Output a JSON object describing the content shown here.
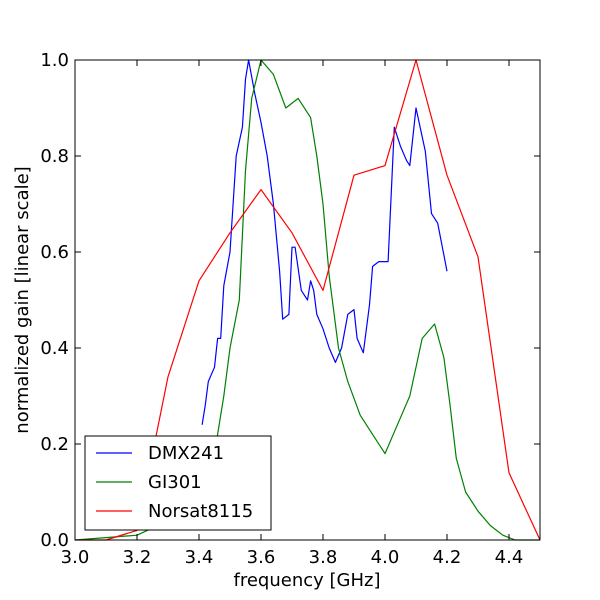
{
  "chart_data": {
    "type": "line",
    "xlabel": "frequency [GHz]",
    "ylabel": "normalized gain [linear scale]",
    "xlim": [
      3.0,
      4.5
    ],
    "ylim": [
      0.0,
      1.0
    ],
    "x_ticks": [
      3.0,
      3.2,
      3.4,
      3.6,
      3.8,
      4.0,
      4.2,
      4.4
    ],
    "x_tick_labels": [
      "3.0",
      "3.2",
      "3.4",
      "3.6",
      "3.8",
      "4.0",
      "4.2",
      "4.4"
    ],
    "y_ticks": [
      0.0,
      0.2,
      0.4,
      0.6,
      0.8,
      1.0
    ],
    "y_tick_labels": [
      "0.0",
      "0.2",
      "0.4",
      "0.6",
      "0.8",
      "1.0"
    ],
    "grid": false,
    "legend_position": "lower-left",
    "series": [
      {
        "name": "DMX241",
        "color": "#0000ff",
        "points": [
          [
            3.41,
            0.24
          ],
          [
            3.42,
            0.28
          ],
          [
            3.43,
            0.33
          ],
          [
            3.45,
            0.36
          ],
          [
            3.46,
            0.42
          ],
          [
            3.47,
            0.42
          ],
          [
            3.48,
            0.53
          ],
          [
            3.5,
            0.6
          ],
          [
            3.51,
            0.7
          ],
          [
            3.52,
            0.8
          ],
          [
            3.54,
            0.86
          ],
          [
            3.55,
            0.96
          ],
          [
            3.56,
            1.0
          ],
          [
            3.58,
            0.93
          ],
          [
            3.6,
            0.87
          ],
          [
            3.62,
            0.8
          ],
          [
            3.64,
            0.7
          ],
          [
            3.66,
            0.56
          ],
          [
            3.67,
            0.46
          ],
          [
            3.69,
            0.47
          ],
          [
            3.7,
            0.61
          ],
          [
            3.71,
            0.61
          ],
          [
            3.73,
            0.52
          ],
          [
            3.75,
            0.5
          ],
          [
            3.76,
            0.54
          ],
          [
            3.77,
            0.52
          ],
          [
            3.78,
            0.47
          ],
          [
            3.8,
            0.44
          ],
          [
            3.82,
            0.4
          ],
          [
            3.84,
            0.37
          ],
          [
            3.86,
            0.4
          ],
          [
            3.88,
            0.47
          ],
          [
            3.9,
            0.48
          ],
          [
            3.91,
            0.42
          ],
          [
            3.93,
            0.39
          ],
          [
            3.95,
            0.49
          ],
          [
            3.96,
            0.57
          ],
          [
            3.98,
            0.58
          ],
          [
            4.01,
            0.58
          ],
          [
            4.03,
            0.86
          ],
          [
            4.05,
            0.82
          ],
          [
            4.07,
            0.79
          ],
          [
            4.08,
            0.78
          ],
          [
            4.1,
            0.9
          ],
          [
            4.13,
            0.81
          ],
          [
            4.15,
            0.68
          ],
          [
            4.17,
            0.66
          ],
          [
            4.2,
            0.56
          ]
        ]
      },
      {
        "name": "GI301",
        "color": "#008000",
        "points": [
          [
            3.0,
            0.0
          ],
          [
            3.1,
            0.005
          ],
          [
            3.2,
            0.01
          ],
          [
            3.3,
            0.04
          ],
          [
            3.4,
            0.08
          ],
          [
            3.45,
            0.18
          ],
          [
            3.48,
            0.3
          ],
          [
            3.5,
            0.4
          ],
          [
            3.53,
            0.5
          ],
          [
            3.55,
            0.77
          ],
          [
            3.57,
            0.92
          ],
          [
            3.6,
            1.0
          ],
          [
            3.64,
            0.97
          ],
          [
            3.68,
            0.9
          ],
          [
            3.72,
            0.92
          ],
          [
            3.76,
            0.88
          ],
          [
            3.78,
            0.8
          ],
          [
            3.8,
            0.7
          ],
          [
            3.82,
            0.55
          ],
          [
            3.85,
            0.4
          ],
          [
            3.88,
            0.33
          ],
          [
            3.92,
            0.26
          ],
          [
            3.96,
            0.22
          ],
          [
            4.0,
            0.18
          ],
          [
            4.04,
            0.24
          ],
          [
            4.08,
            0.3
          ],
          [
            4.12,
            0.42
          ],
          [
            4.16,
            0.45
          ],
          [
            4.19,
            0.38
          ],
          [
            4.21,
            0.28
          ],
          [
            4.23,
            0.17
          ],
          [
            4.26,
            0.1
          ],
          [
            4.3,
            0.06
          ],
          [
            4.34,
            0.03
          ],
          [
            4.38,
            0.01
          ],
          [
            4.42,
            0.0
          ],
          [
            4.5,
            0.0
          ]
        ]
      },
      {
        "name": "Norsat8115",
        "color": "#ff0000",
        "points": [
          [
            3.0,
            0.0
          ],
          [
            3.1,
            0.0
          ],
          [
            3.2,
            0.02
          ],
          [
            3.3,
            0.34
          ],
          [
            3.4,
            0.54
          ],
          [
            3.5,
            0.64
          ],
          [
            3.6,
            0.73
          ],
          [
            3.7,
            0.64
          ],
          [
            3.8,
            0.52
          ],
          [
            3.9,
            0.76
          ],
          [
            4.0,
            0.78
          ],
          [
            4.1,
            1.0
          ],
          [
            4.2,
            0.76
          ],
          [
            4.3,
            0.59
          ],
          [
            4.4,
            0.14
          ],
          [
            4.5,
            0.0
          ]
        ]
      }
    ]
  }
}
